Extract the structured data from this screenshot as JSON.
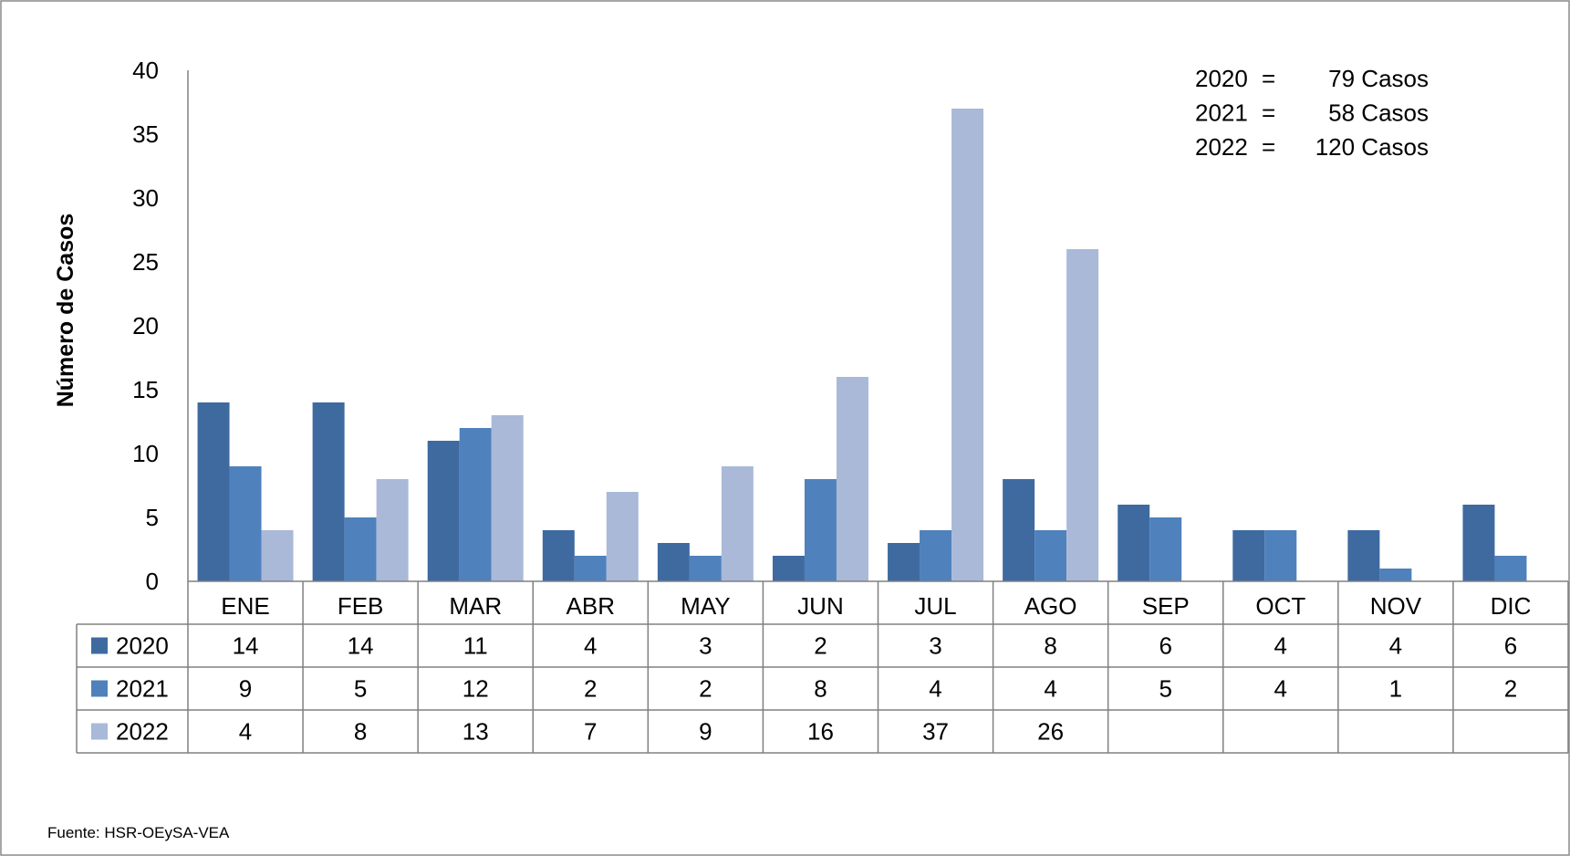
{
  "chart_data": {
    "type": "bar",
    "categories": [
      "ENE",
      "FEB",
      "MAR",
      "ABR",
      "MAY",
      "JUN",
      "JUL",
      "AGO",
      "SEP",
      "OCT",
      "NOV",
      "DIC"
    ],
    "series": [
      {
        "name": "2020",
        "values": [
          14,
          14,
          11,
          4,
          3,
          2,
          3,
          8,
          6,
          4,
          4,
          6
        ],
        "color": "#3e6aa0"
      },
      {
        "name": "2021",
        "values": [
          9,
          5,
          12,
          2,
          2,
          8,
          4,
          4,
          5,
          4,
          1,
          2
        ],
        "color": "#4f81bd"
      },
      {
        "name": "2022",
        "values": [
          4,
          8,
          13,
          7,
          9,
          16,
          37,
          26,
          null,
          null,
          null,
          null
        ],
        "color": "#aab9d8"
      }
    ],
    "ylabel": "Número de Casos",
    "ylim": [
      0,
      40
    ],
    "yticks": [
      0,
      5,
      10,
      15,
      20,
      25,
      30,
      35,
      40
    ],
    "grid": false,
    "data_table": true,
    "annotations": [
      {
        "year": "2020",
        "eq": "=",
        "count": "79 Casos"
      },
      {
        "year": "2021",
        "eq": "=",
        "count": "58 Casos"
      },
      {
        "year": "2022",
        "eq": "=",
        "count": "120 Casos"
      }
    ],
    "annotation_placement": "top-right"
  },
  "source": "Fuente: HSR-OEySA-VEA"
}
